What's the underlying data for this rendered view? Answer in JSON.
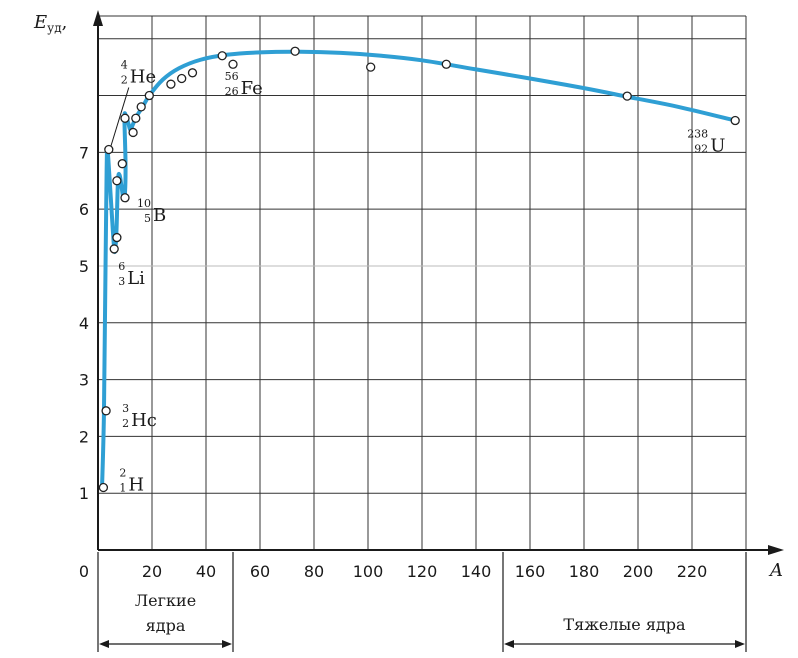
{
  "chart_data": {
    "type": "line",
    "ylabel": "E",
    "ylabel_sub": "уд",
    "ylabel_suffix": ",",
    "xlabel": "A",
    "x_ticks": [
      "0",
      "20",
      "40",
      "60",
      "80",
      "100",
      "120",
      "140",
      "160",
      "180",
      "200",
      "220"
    ],
    "y_ticks": [
      "1",
      "2",
      "3",
      "4",
      "5",
      "6",
      "7"
    ],
    "xlim": [
      0,
      240
    ],
    "ylim": [
      0,
      9.4
    ],
    "grid": true,
    "curve": [
      {
        "x": 1.5,
        "y": 1.1
      },
      {
        "x": 2.2,
        "y": 2.4
      },
      {
        "x": 2.7,
        "y": 4.6
      },
      {
        "x": 3.2,
        "y": 6.7
      },
      {
        "x": 3.5,
        "y": 7.05
      },
      {
        "x": 4.2,
        "y": 6.6
      },
      {
        "x": 5.0,
        "y": 6.0
      },
      {
        "x": 6.0,
        "y": 5.3
      },
      {
        "x": 6.5,
        "y": 5.35
      },
      {
        "x": 6.9,
        "y": 5.7
      },
      {
        "x": 7.4,
        "y": 6.5
      },
      {
        "x": 8.0,
        "y": 6.6
      },
      {
        "x": 8.7,
        "y": 6.4
      },
      {
        "x": 9.4,
        "y": 6.2
      },
      {
        "x": 10.0,
        "y": 6.3
      },
      {
        "x": 10.2,
        "y": 6.8
      },
      {
        "x": 9.8,
        "y": 7.6
      },
      {
        "x": 10.3,
        "y": 7.65
      },
      {
        "x": 11.3,
        "y": 7.5
      },
      {
        "x": 12.0,
        "y": 7.4
      },
      {
        "x": 13.0,
        "y": 7.5
      },
      {
        "x": 14.5,
        "y": 7.65
      },
      {
        "x": 16.5,
        "y": 7.8
      },
      {
        "x": 19.0,
        "y": 8.0
      },
      {
        "x": 24.0,
        "y": 8.28
      },
      {
        "x": 30.0,
        "y": 8.48
      },
      {
        "x": 38.0,
        "y": 8.63
      },
      {
        "x": 48.0,
        "y": 8.72
      },
      {
        "x": 60.0,
        "y": 8.76
      },
      {
        "x": 75.0,
        "y": 8.77
      },
      {
        "x": 90.0,
        "y": 8.75
      },
      {
        "x": 105.0,
        "y": 8.7
      },
      {
        "x": 120.0,
        "y": 8.62
      },
      {
        "x": 140.0,
        "y": 8.46
      },
      {
        "x": 160.0,
        "y": 8.3
      },
      {
        "x": 180.0,
        "y": 8.13
      },
      {
        "x": 197.0,
        "y": 7.97
      },
      {
        "x": 215.0,
        "y": 7.8
      },
      {
        "x": 236.0,
        "y": 7.56
      }
    ],
    "points": [
      {
        "x": 2,
        "y": 1.1
      },
      {
        "x": 3,
        "y": 2.45
      },
      {
        "x": 4,
        "y": 7.05
      },
      {
        "x": 6,
        "y": 5.3
      },
      {
        "x": 7,
        "y": 5.5
      },
      {
        "x": 7,
        "y": 6.5
      },
      {
        "x": 9,
        "y": 6.8
      },
      {
        "x": 10,
        "y": 6.2
      },
      {
        "x": 10,
        "y": 7.6
      },
      {
        "x": 13,
        "y": 7.35
      },
      {
        "x": 14,
        "y": 7.6
      },
      {
        "x": 16,
        "y": 7.8
      },
      {
        "x": 19,
        "y": 8.0
      },
      {
        "x": 27,
        "y": 8.2
      },
      {
        "x": 31,
        "y": 8.3
      },
      {
        "x": 35,
        "y": 8.4
      },
      {
        "x": 46,
        "y": 8.7
      },
      {
        "x": 50,
        "y": 8.55
      },
      {
        "x": 73,
        "y": 8.78
      },
      {
        "x": 101,
        "y": 8.5
      },
      {
        "x": 129,
        "y": 8.55
      },
      {
        "x": 196,
        "y": 7.99
      },
      {
        "x": 236,
        "y": 7.56
      }
    ],
    "annotations": [
      {
        "mass": "4",
        "charge": "2",
        "symbol": "He",
        "x": 4,
        "y": 7.05
      },
      {
        "mass": "56",
        "charge": "26",
        "symbol": "Fe",
        "x": 38,
        "y": 8.4
      },
      {
        "mass": "10",
        "charge": "5",
        "symbol": "B",
        "x": 10,
        "y": 6.2
      },
      {
        "mass": "6",
        "charge": "3",
        "symbol": "Li",
        "x": 6,
        "y": 5.3
      },
      {
        "mass": "3",
        "charge": "2",
        "symbol": "Hc",
        "x": 3,
        "y": 2.45
      },
      {
        "mass": "2",
        "charge": "1",
        "symbol": "H",
        "x": 2,
        "y": 1.1
      },
      {
        "mass": "238",
        "charge": "92",
        "symbol": "U",
        "x": 236,
        "y": 7.56
      }
    ],
    "regions": [
      {
        "label_line1": "Легкие",
        "label_line2": "ядра",
        "x0": 0,
        "x1": 50
      },
      {
        "label_line1": "Тяжелые ядра",
        "label_line2": "",
        "x0": 150,
        "x1": 240
      }
    ],
    "colors": {
      "curve": "#2f9fd4",
      "grid": "#333333",
      "points_fill": "#ffffff",
      "points_stroke": "#222222"
    }
  }
}
